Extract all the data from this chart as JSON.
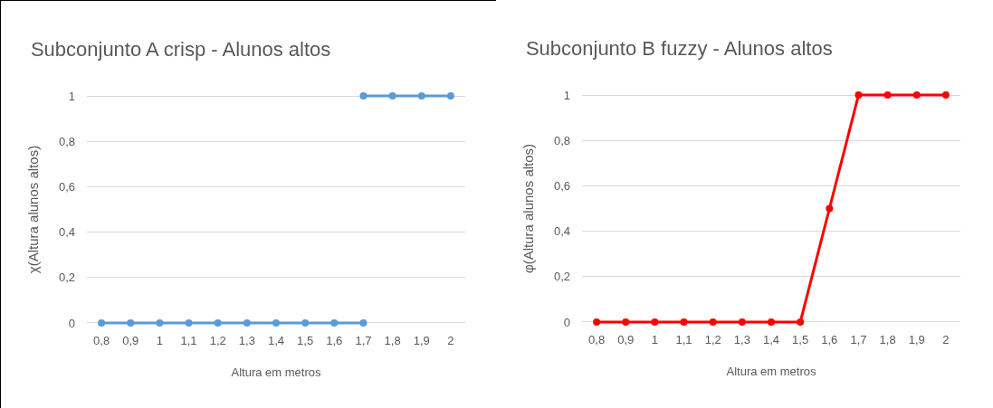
{
  "chart_data": [
    {
      "type": "line",
      "title": "Subconjunto A crisp - Alunos altos",
      "xlabel": "Altura em metros",
      "ylabel": "χ(Altura alunos altos)",
      "categories": [
        "0,8",
        "0,9",
        "1",
        "1,1",
        "1,2",
        "1,3",
        "1,4",
        "1,5",
        "1,6",
        "1,7",
        "1,8",
        "1,9",
        "2"
      ],
      "series": [
        {
          "color": "#5b9bd5",
          "values": [
            0,
            0,
            0,
            0,
            0,
            0,
            0,
            0,
            0,
            0,
            null,
            null,
            null
          ]
        },
        {
          "color": "#5b9bd5",
          "values": [
            null,
            null,
            null,
            null,
            null,
            null,
            null,
            null,
            null,
            1,
            1,
            1,
            1
          ]
        }
      ],
      "ylim": [
        0,
        1
      ],
      "yticks": [
        {
          "value": 0,
          "label": "0"
        },
        {
          "value": 0.2,
          "label": "0,2"
        },
        {
          "value": 0.4,
          "label": "0,4"
        },
        {
          "value": 0.6,
          "label": "0,6"
        },
        {
          "value": 0.8,
          "label": "0,8"
        },
        {
          "value": 1,
          "label": "1"
        }
      ],
      "grid": "y",
      "marker": "circle",
      "line_style": "solid"
    },
    {
      "type": "line",
      "title": "Subconjunto B fuzzy - Alunos altos",
      "xlabel": "Altura em metros",
      "ylabel": "φ(Altura alunos altos)",
      "categories": [
        "0,8",
        "0,9",
        "1",
        "1,1",
        "1,2",
        "1,3",
        "1,4",
        "1,5",
        "1,6",
        "1,7",
        "1,8",
        "1,9",
        "2"
      ],
      "series": [
        {
          "color": "#ff0000",
          "values": [
            0,
            0,
            0,
            0,
            0,
            0,
            0,
            0,
            0.5,
            1,
            1,
            1,
            1
          ]
        }
      ],
      "ylim": [
        0,
        1
      ],
      "yticks": [
        {
          "value": 0,
          "label": "0"
        },
        {
          "value": 0.2,
          "label": "0,2"
        },
        {
          "value": 0.4,
          "label": "0,4"
        },
        {
          "value": 0.6,
          "label": "0,6"
        },
        {
          "value": 0.8,
          "label": "0,8"
        },
        {
          "value": 1,
          "label": "1"
        }
      ],
      "grid": "y",
      "marker": "circle",
      "line_style": "solid"
    }
  ]
}
